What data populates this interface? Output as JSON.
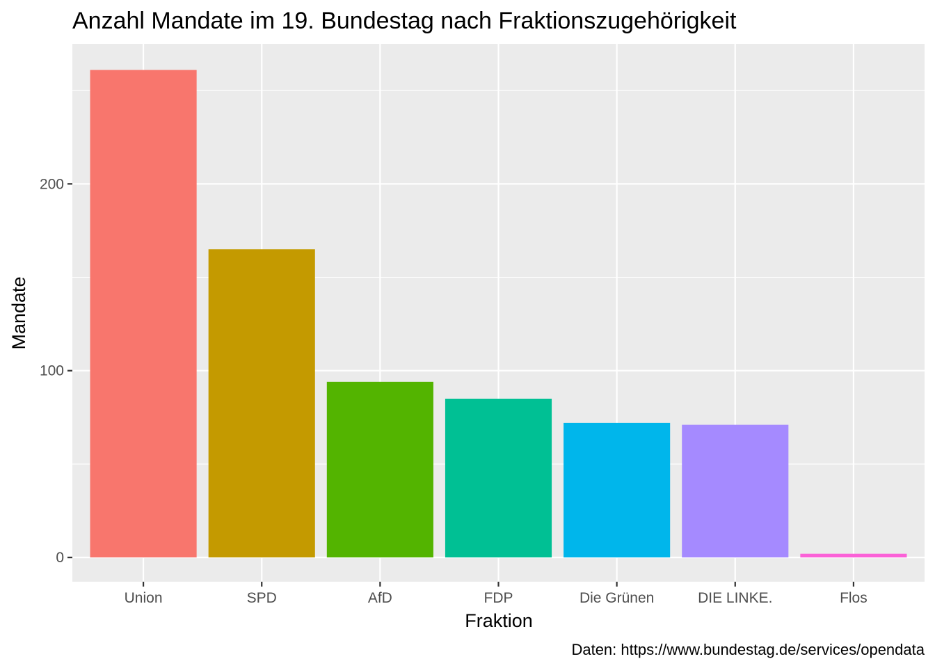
{
  "chart_data": {
    "type": "bar",
    "title": "Anzahl Mandate im 19. Bundestag nach Fraktionszugehörigkeit",
    "xlabel": "Fraktion",
    "ylabel": "Mandate",
    "caption": "Daten: https://www.bundestag.de/services/opendata",
    "categories": [
      "Union",
      "SPD",
      "AfD",
      "FDP",
      "Die Grünen",
      "DIE LINKE.",
      "Flos"
    ],
    "values": [
      261,
      165,
      94,
      85,
      72,
      71,
      2
    ],
    "colors": [
      "#F8766D",
      "#C49A00",
      "#53B400",
      "#00C094",
      "#00B6EB",
      "#A58AFF",
      "#FB61D7"
    ],
    "ylim": [
      -13,
      275
    ],
    "yticks": [
      0,
      100,
      200
    ],
    "ytick_labels": [
      "0",
      "100",
      "200"
    ],
    "grid": true,
    "legend": "none",
    "panel_background": "#EBEBEB"
  }
}
